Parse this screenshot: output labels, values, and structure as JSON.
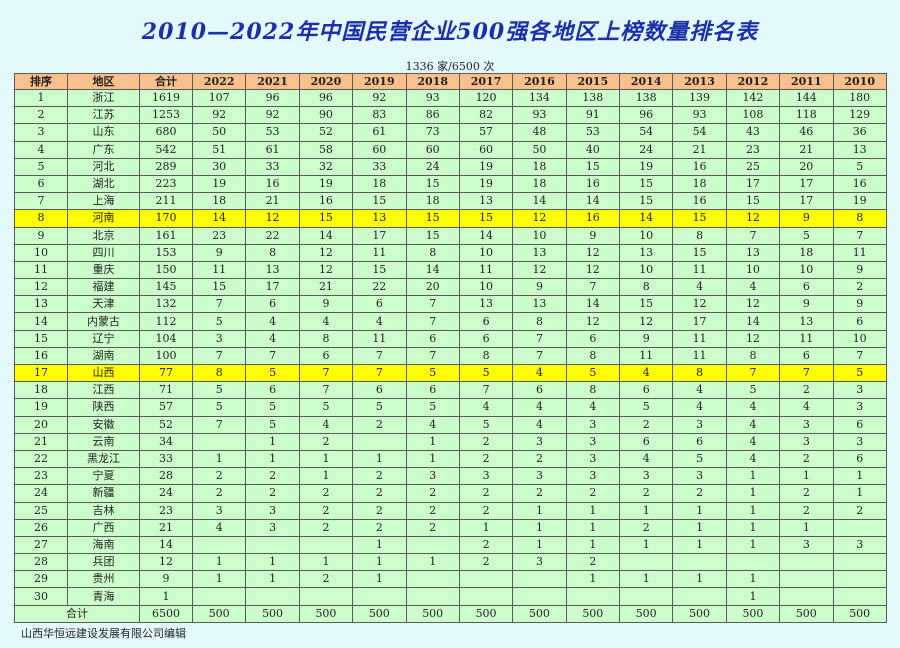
{
  "title": "2010—2022年中国民营企业500强各地区上榜数量排名表",
  "subtitle": "1336 家/6500 次",
  "colors": {
    "header_bg": "#f8c08c",
    "cell_bg": "#ccfecc",
    "highlight_bg": "#ffff00",
    "title": "#1b2fa8",
    "page_bg": "#e4f9fc"
  },
  "table": {
    "headers": [
      "排序",
      "地区",
      "合计",
      "2022",
      "2021",
      "2020",
      "2019",
      "2018",
      "2017",
      "2016",
      "2015",
      "2014",
      "2013",
      "2012",
      "2011",
      "2010"
    ],
    "rows": [
      {
        "cells": [
          "1",
          "浙江",
          "1619",
          "107",
          "96",
          "96",
          "92",
          "93",
          "120",
          "134",
          "138",
          "138",
          "139",
          "142",
          "144",
          "180"
        ]
      },
      {
        "cells": [
          "2",
          "江苏",
          "1253",
          "92",
          "92",
          "90",
          "83",
          "86",
          "82",
          "93",
          "91",
          "96",
          "93",
          "108",
          "118",
          "129"
        ]
      },
      {
        "cells": [
          "3",
          "山东",
          "680",
          "50",
          "53",
          "52",
          "61",
          "73",
          "57",
          "48",
          "53",
          "54",
          "54",
          "43",
          "46",
          "36"
        ]
      },
      {
        "cells": [
          "4",
          "广东",
          "542",
          "51",
          "61",
          "58",
          "60",
          "60",
          "60",
          "50",
          "40",
          "24",
          "21",
          "23",
          "21",
          "13"
        ]
      },
      {
        "cells": [
          "5",
          "河北",
          "289",
          "30",
          "33",
          "32",
          "33",
          "24",
          "19",
          "18",
          "15",
          "19",
          "16",
          "25",
          "20",
          "5"
        ]
      },
      {
        "cells": [
          "6",
          "湖北",
          "223",
          "19",
          "16",
          "19",
          "18",
          "15",
          "19",
          "18",
          "16",
          "15",
          "18",
          "17",
          "17",
          "16"
        ]
      },
      {
        "cells": [
          "7",
          "上海",
          "211",
          "18",
          "21",
          "16",
          "15",
          "18",
          "13",
          "14",
          "14",
          "15",
          "16",
          "15",
          "17",
          "19"
        ]
      },
      {
        "cells": [
          "8",
          "河南",
          "170",
          "14",
          "12",
          "15",
          "13",
          "15",
          "15",
          "12",
          "16",
          "14",
          "15",
          "12",
          "9",
          "8"
        ],
        "highlight": true
      },
      {
        "cells": [
          "9",
          "北京",
          "161",
          "23",
          "22",
          "14",
          "17",
          "15",
          "14",
          "10",
          "9",
          "10",
          "8",
          "7",
          "5",
          "7"
        ]
      },
      {
        "cells": [
          "10",
          "四川",
          "153",
          "9",
          "8",
          "12",
          "11",
          "8",
          "10",
          "13",
          "12",
          "13",
          "15",
          "13",
          "18",
          "11"
        ]
      },
      {
        "cells": [
          "11",
          "重庆",
          "150",
          "11",
          "13",
          "12",
          "15",
          "14",
          "11",
          "12",
          "12",
          "10",
          "11",
          "10",
          "10",
          "9"
        ]
      },
      {
        "cells": [
          "12",
          "福建",
          "145",
          "15",
          "17",
          "21",
          "22",
          "20",
          "10",
          "9",
          "7",
          "8",
          "4",
          "4",
          "6",
          "2"
        ]
      },
      {
        "cells": [
          "13",
          "天津",
          "132",
          "7",
          "6",
          "9",
          "6",
          "7",
          "13",
          "13",
          "14",
          "15",
          "12",
          "12",
          "9",
          "9"
        ]
      },
      {
        "cells": [
          "14",
          "内蒙古",
          "112",
          "5",
          "4",
          "4",
          "4",
          "7",
          "6",
          "8",
          "12",
          "12",
          "17",
          "14",
          "13",
          "6"
        ]
      },
      {
        "cells": [
          "15",
          "辽宁",
          "104",
          "3",
          "4",
          "8",
          "11",
          "6",
          "6",
          "7",
          "6",
          "9",
          "11",
          "12",
          "11",
          "10"
        ]
      },
      {
        "cells": [
          "16",
          "湖南",
          "100",
          "7",
          "7",
          "6",
          "7",
          "7",
          "8",
          "7",
          "8",
          "11",
          "11",
          "8",
          "6",
          "7"
        ]
      },
      {
        "cells": [
          "17",
          "山西",
          "77",
          "8",
          "5",
          "7",
          "7",
          "5",
          "5",
          "4",
          "5",
          "4",
          "8",
          "7",
          "7",
          "5"
        ],
        "highlight": true
      },
      {
        "cells": [
          "18",
          "江西",
          "71",
          "5",
          "6",
          "7",
          "6",
          "6",
          "7",
          "6",
          "8",
          "6",
          "4",
          "5",
          "2",
          "3"
        ]
      },
      {
        "cells": [
          "19",
          "陕西",
          "57",
          "5",
          "5",
          "5",
          "5",
          "5",
          "4",
          "4",
          "4",
          "5",
          "4",
          "4",
          "4",
          "3"
        ]
      },
      {
        "cells": [
          "20",
          "安徽",
          "52",
          "7",
          "5",
          "4",
          "2",
          "4",
          "5",
          "4",
          "3",
          "2",
          "3",
          "4",
          "3",
          "6"
        ]
      },
      {
        "cells": [
          "21",
          "云南",
          "34",
          "",
          "1",
          "2",
          "",
          "1",
          "2",
          "3",
          "3",
          "6",
          "6",
          "4",
          "3",
          "3"
        ]
      },
      {
        "cells": [
          "22",
          "黑龙江",
          "33",
          "1",
          "1",
          "1",
          "1",
          "1",
          "2",
          "2",
          "3",
          "4",
          "5",
          "4",
          "2",
          "6"
        ]
      },
      {
        "cells": [
          "23",
          "宁夏",
          "28",
          "2",
          "2",
          "1",
          "2",
          "3",
          "3",
          "3",
          "3",
          "3",
          "3",
          "1",
          "1",
          "1"
        ]
      },
      {
        "cells": [
          "24",
          "新疆",
          "24",
          "2",
          "2",
          "2",
          "2",
          "2",
          "2",
          "2",
          "2",
          "2",
          "2",
          "1",
          "2",
          "1"
        ]
      },
      {
        "cells": [
          "25",
          "吉林",
          "23",
          "3",
          "3",
          "2",
          "2",
          "2",
          "2",
          "1",
          "1",
          "1",
          "1",
          "1",
          "2",
          "2"
        ]
      },
      {
        "cells": [
          "26",
          "广西",
          "21",
          "4",
          "3",
          "2",
          "2",
          "2",
          "1",
          "1",
          "1",
          "2",
          "1",
          "1",
          "1",
          ""
        ]
      },
      {
        "cells": [
          "27",
          "海南",
          "14",
          "",
          "",
          "",
          "1",
          "",
          "2",
          "1",
          "1",
          "1",
          "1",
          "1",
          "3",
          "3"
        ]
      },
      {
        "cells": [
          "28",
          "兵团",
          "12",
          "1",
          "1",
          "1",
          "1",
          "1",
          "2",
          "3",
          "2",
          "",
          "",
          "",
          "",
          ""
        ]
      },
      {
        "cells": [
          "29",
          "贵州",
          "9",
          "1",
          "1",
          "2",
          "1",
          "",
          "",
          "",
          "1",
          "1",
          "1",
          "1",
          "",
          ""
        ]
      },
      {
        "cells": [
          "30",
          "青海",
          "1",
          "",
          "",
          "",
          "",
          "",
          "",
          "",
          "",
          "",
          "",
          "1",
          "",
          ""
        ]
      }
    ],
    "total_row": {
      "label": "合计",
      "values": [
        "6500",
        "500",
        "500",
        "500",
        "500",
        "500",
        "500",
        "500",
        "500",
        "500",
        "500",
        "500",
        "500",
        "500"
      ]
    }
  },
  "footer": "山西华恒远建设发展有限公司编辑"
}
